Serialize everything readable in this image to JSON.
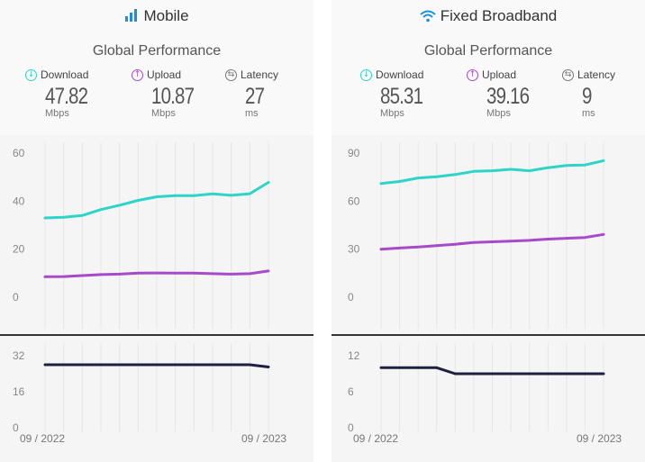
{
  "panels": [
    {
      "title": "Mobile",
      "icon": "signal-bars-icon",
      "subtitle": "Global Performance",
      "metrics": {
        "download": {
          "label": "Download",
          "value": "47.82",
          "unit": "Mbps"
        },
        "upload": {
          "label": "Upload",
          "value": "10.87",
          "unit": "Mbps"
        },
        "latency": {
          "label": "Latency",
          "value": "27",
          "unit": "ms"
        }
      },
      "date_start": "09 / 2022",
      "date_end": "09 / 2023"
    },
    {
      "title": "Fixed Broadband",
      "icon": "wifi-icon",
      "subtitle": "Global Performance",
      "metrics": {
        "download": {
          "label": "Download",
          "value": "85.31",
          "unit": "Mbps"
        },
        "upload": {
          "label": "Upload",
          "value": "39.16",
          "unit": "Mbps"
        },
        "latency": {
          "label": "Latency",
          "value": "9",
          "unit": "ms"
        }
      },
      "date_start": "09 / 2022",
      "date_end": "09 / 2023"
    }
  ],
  "colors": {
    "download": "#2dd4c8",
    "upload": "#a64ac9",
    "latency": "#1f2041",
    "accent_icon": "#1a8fd6"
  },
  "chart_data": [
    {
      "type": "line",
      "panel": "Mobile",
      "title": "",
      "x": [
        "09/2022",
        "10/2022",
        "11/2022",
        "12/2022",
        "01/2023",
        "02/2023",
        "03/2023",
        "04/2023",
        "05/2023",
        "06/2023",
        "07/2023",
        "08/2023",
        "09/2023"
      ],
      "yticks": [
        "0",
        "20",
        "40",
        "60"
      ],
      "ylim": [
        0,
        60
      ],
      "series": [
        {
          "name": "Download",
          "values": [
            33,
            33.3,
            34,
            36.5,
            38.3,
            40.3,
            41.8,
            42.3,
            42.3,
            43,
            42.4,
            43.1,
            47.8
          ]
        },
        {
          "name": "Upload",
          "values": [
            8.5,
            8.6,
            9,
            9.4,
            9.6,
            10,
            10.1,
            10,
            10,
            9.8,
            9.6,
            9.8,
            10.9
          ]
        }
      ]
    },
    {
      "type": "line",
      "panel": "Mobile",
      "title": "",
      "x": [
        "09/2022",
        "10/2022",
        "11/2022",
        "12/2022",
        "01/2023",
        "02/2023",
        "03/2023",
        "04/2023",
        "05/2023",
        "06/2023",
        "07/2023",
        "08/2023",
        "09/2023"
      ],
      "yticks": [
        "0",
        "16",
        "32"
      ],
      "ylim": [
        0,
        32
      ],
      "series": [
        {
          "name": "Latency",
          "values": [
            28,
            28,
            28,
            28,
            28,
            28,
            28,
            28,
            28,
            28,
            28,
            28,
            27
          ]
        }
      ]
    },
    {
      "type": "line",
      "panel": "Fixed Broadband",
      "title": "",
      "x": [
        "09/2022",
        "10/2022",
        "11/2022",
        "12/2022",
        "01/2023",
        "02/2023",
        "03/2023",
        "04/2023",
        "05/2023",
        "06/2023",
        "07/2023",
        "08/2023",
        "09/2023"
      ],
      "yticks": [
        "0",
        "30",
        "60",
        "90"
      ],
      "ylim": [
        0,
        90
      ],
      "series": [
        {
          "name": "Download",
          "values": [
            71,
            72.3,
            74.5,
            75.2,
            76.6,
            78.6,
            79,
            79.9,
            79,
            80.9,
            82.3,
            82.6,
            85.3
          ]
        },
        {
          "name": "Upload",
          "values": [
            30,
            30.7,
            31.4,
            32.2,
            33.1,
            34.2,
            34.6,
            35,
            35.5,
            36.3,
            36.8,
            37.3,
            39.2
          ]
        }
      ]
    },
    {
      "type": "line",
      "panel": "Fixed Broadband",
      "title": "",
      "x": [
        "09/2022",
        "10/2022",
        "11/2022",
        "12/2022",
        "01/2023",
        "02/2023",
        "03/2023",
        "04/2023",
        "05/2023",
        "06/2023",
        "07/2023",
        "08/2023",
        "09/2023"
      ],
      "yticks": [
        "0",
        "6",
        "12"
      ],
      "ylim": [
        0,
        12
      ],
      "series": [
        {
          "name": "Latency",
          "values": [
            10,
            10,
            10,
            10,
            9,
            9,
            9,
            9,
            9,
            9,
            9,
            9,
            9
          ]
        }
      ]
    }
  ]
}
